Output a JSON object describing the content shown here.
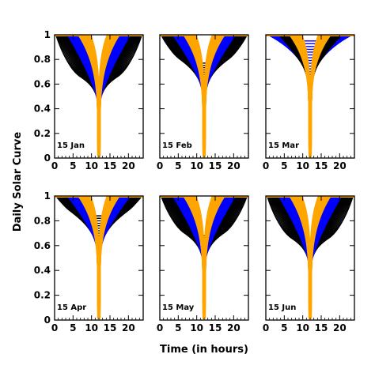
{
  "figure": {
    "ylabel": "Daily Solar Curve",
    "xlabel": "Time (in hours)"
  },
  "colors": {
    "band_black": "#000000",
    "band_blue": "#0000ff",
    "band_orange": "#ffa500",
    "frame": "#000000"
  },
  "chart_data": [
    {
      "type": "line",
      "panel_label": "15 Jan",
      "xlim": [
        0,
        24
      ],
      "ylim": [
        0,
        1
      ],
      "xticks": [
        0,
        5,
        10,
        15,
        20
      ],
      "yticks": [
        0,
        0.2,
        0.4,
        0.6,
        0.8,
        1
      ],
      "center_hour": 12,
      "flat_top_floor": 0.64,
      "bands": [
        "black",
        "blue",
        "orange"
      ],
      "curves_per_band": 14
    },
    {
      "type": "line",
      "panel_label": "15 Feb",
      "xlim": [
        0,
        24
      ],
      "ylim": [
        0,
        1
      ],
      "xticks": [
        0,
        5,
        10,
        15,
        20
      ],
      "yticks": [
        0,
        0.2,
        0.4,
        0.6,
        0.8,
        1
      ],
      "center_hour": 12,
      "flat_top_floor": 0.77,
      "bands": [
        "black",
        "blue",
        "orange"
      ],
      "curves_per_band": 14
    },
    {
      "type": "line",
      "panel_label": "15 Mar",
      "xlim": [
        0,
        24
      ],
      "ylim": [
        0,
        1
      ],
      "xticks": [
        0,
        5,
        10,
        15,
        20
      ],
      "yticks": [
        0,
        0.2,
        0.4,
        0.6,
        0.8,
        1
      ],
      "center_hour": 12,
      "flat_top_floor": 0.95,
      "bands": [
        "blue",
        "black",
        "orange"
      ],
      "curves_per_band": 14
    },
    {
      "type": "line",
      "panel_label": "15 Apr",
      "xlim": [
        0,
        24
      ],
      "ylim": [
        0,
        1
      ],
      "xticks": [
        0,
        5,
        10,
        15,
        20
      ],
      "yticks": [
        0,
        0.2,
        0.4,
        0.6,
        0.8,
        1
      ],
      "center_hour": 12,
      "flat_top_floor": 0.84,
      "bands": [
        "black",
        "blue",
        "orange"
      ],
      "curves_per_band": 14
    },
    {
      "type": "line",
      "panel_label": "15 May",
      "xlim": [
        0,
        24
      ],
      "ylim": [
        0,
        1
      ],
      "xticks": [
        0,
        5,
        10,
        15,
        20
      ],
      "yticks": [
        0,
        0.2,
        0.4,
        0.6,
        0.8,
        1
      ],
      "center_hour": 12,
      "flat_top_floor": 0.68,
      "bands": [
        "black",
        "blue",
        "orange"
      ],
      "curves_per_band": 14
    },
    {
      "type": "line",
      "panel_label": "15 Jun",
      "xlim": [
        0,
        24
      ],
      "ylim": [
        0,
        1
      ],
      "xticks": [
        0,
        5,
        10,
        15,
        20
      ],
      "yticks": [
        0,
        0.2,
        0.4,
        0.6,
        0.8,
        1
      ],
      "center_hour": 12,
      "flat_top_floor": 0.64,
      "bands": [
        "black",
        "blue",
        "orange"
      ],
      "curves_per_band": 14
    }
  ]
}
